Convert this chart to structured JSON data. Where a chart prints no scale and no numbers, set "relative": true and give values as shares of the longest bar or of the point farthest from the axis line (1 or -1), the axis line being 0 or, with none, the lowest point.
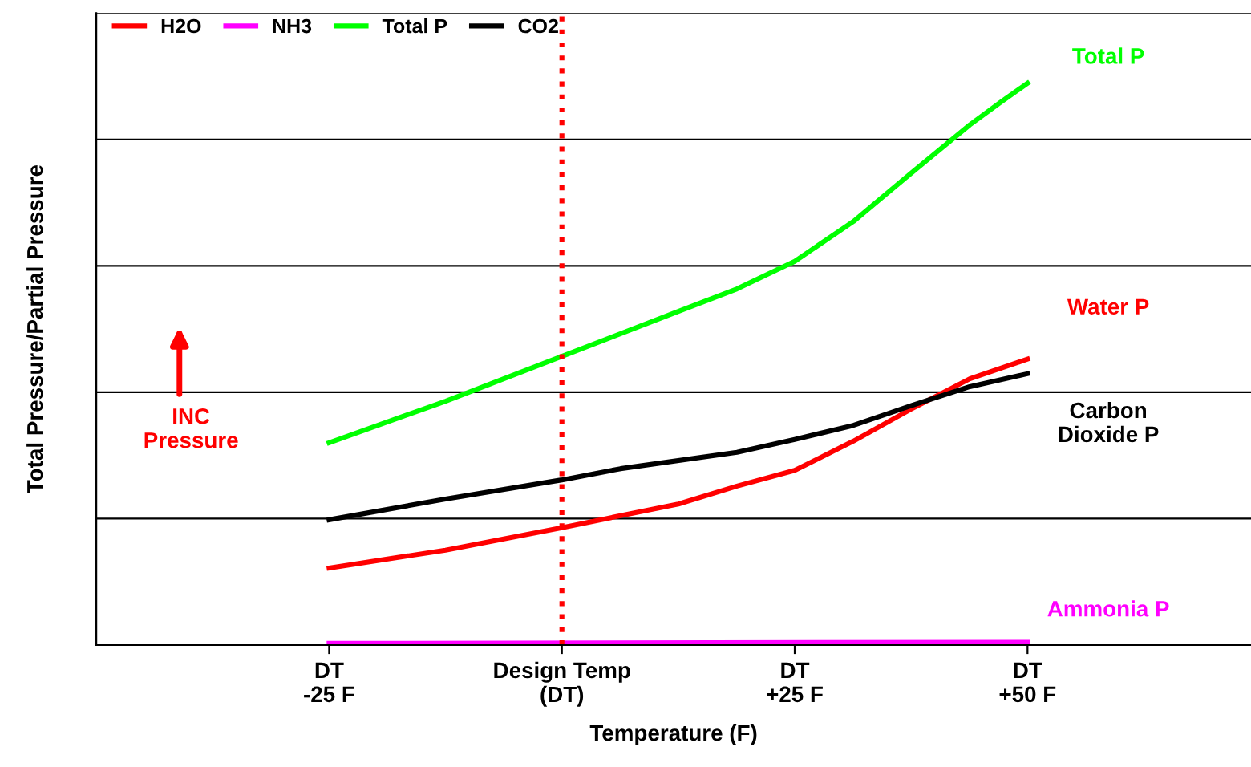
{
  "chart_data": {
    "type": "line",
    "xlabel": "Temperature (F)",
    "ylabel": "Total Pressure/Partial Pressure",
    "relative": true,
    "xlim": [
      -50,
      74
    ],
    "xticks": [
      {
        "value": -25,
        "label": "DT\n-25 F"
      },
      {
        "value": 0,
        "label": "Design Temp\n(DT)"
      },
      {
        "value": 25,
        "label": "DT\n+25 F"
      },
      {
        "value": 50,
        "label": "DT\n+50 F"
      }
    ],
    "series": [
      {
        "name": "H2O",
        "color": "#ff0000",
        "x": [
          -25,
          -12.5,
          0,
          12.5,
          18.8,
          25,
          31.3,
          37.5,
          43.8,
          50
        ],
        "values": [
          0.137,
          0.169,
          0.209,
          0.251,
          0.283,
          0.311,
          0.363,
          0.42,
          0.474,
          0.509
        ]
      },
      {
        "name": "NH3",
        "color": "#ff00ff",
        "x": [
          -25,
          50
        ],
        "values": [
          0.003,
          0.005
        ]
      },
      {
        "name": "Total P",
        "color": "#00ff00",
        "x": [
          -25,
          -12.5,
          0,
          12.5,
          18.8,
          25,
          31.3,
          37.5,
          43.8,
          47.1,
          50
        ],
        "values": [
          0.36,
          0.434,
          0.514,
          0.594,
          0.634,
          0.683,
          0.754,
          0.84,
          0.926,
          0.966,
          1.0
        ]
      },
      {
        "name": "CO2",
        "color": "#000000",
        "x": [
          -25,
          -12.5,
          0,
          6.3,
          18.8,
          25,
          31.3,
          37.5,
          43.8,
          50
        ],
        "values": [
          0.223,
          0.26,
          0.294,
          0.314,
          0.343,
          0.366,
          0.391,
          0.426,
          0.46,
          0.483
        ]
      }
    ],
    "ref_lines": [
      {
        "axis": "x",
        "value": 0,
        "color": "#ff0000",
        "line_style": "dotted"
      }
    ],
    "annotations": [
      "Total P",
      "Water P",
      "Carbon\nDioxide P",
      "Ammonia P",
      "INC\nPressure"
    ],
    "grid": "y",
    "legend": "top left",
    "tick_labels": "x",
    "line_style": "solid",
    "marker": "none"
  }
}
